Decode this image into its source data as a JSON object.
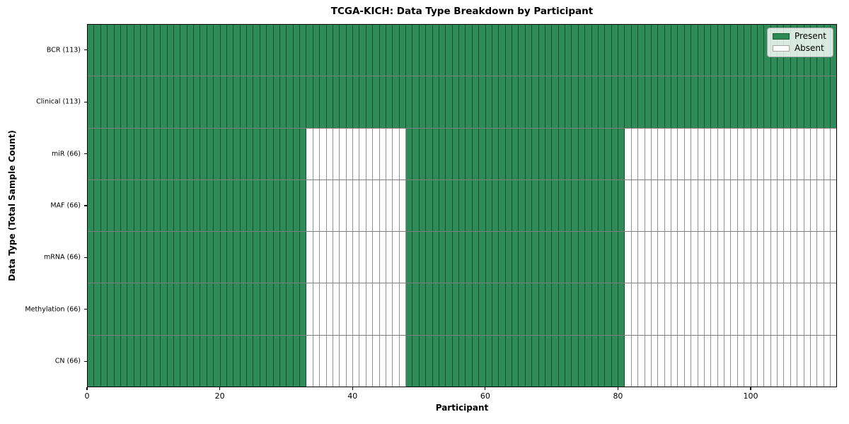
{
  "chart_data": {
    "type": "heatmap",
    "title": "TCGA-KICH: Data Type Breakdown by Participant",
    "xlabel": "Participant",
    "ylabel": "Data Type (Total Sample Count)",
    "xlim": [
      0,
      113
    ],
    "n_participants": 113,
    "x_ticks": [
      0,
      20,
      40,
      60,
      80,
      100
    ],
    "grid": "cell-outlines",
    "legend_position": "upper right",
    "rows": [
      {
        "label": "BCR (113)",
        "total_samples": 113,
        "present_ranges": [
          [
            0,
            113
          ]
        ]
      },
      {
        "label": "Clinical (113)",
        "total_samples": 113,
        "present_ranges": [
          [
            0,
            113
          ]
        ]
      },
      {
        "label": "miR (66)",
        "total_samples": 66,
        "present_ranges": [
          [
            0,
            33
          ],
          [
            48,
            81
          ]
        ]
      },
      {
        "label": "MAF (66)",
        "total_samples": 66,
        "present_ranges": [
          [
            0,
            33
          ],
          [
            48,
            81
          ]
        ]
      },
      {
        "label": "mRNA (66)",
        "total_samples": 66,
        "present_ranges": [
          [
            0,
            33
          ],
          [
            48,
            81
          ]
        ]
      },
      {
        "label": "Methylation (66)",
        "total_samples": 66,
        "present_ranges": [
          [
            0,
            33
          ],
          [
            48,
            81
          ]
        ]
      },
      {
        "label": "CN (66)",
        "total_samples": 66,
        "present_ranges": [
          [
            0,
            33
          ],
          [
            48,
            81
          ]
        ]
      }
    ],
    "legend": [
      {
        "label": "Present",
        "color": "#2e8b57"
      },
      {
        "label": "Absent",
        "color": "#ffffff"
      }
    ],
    "colors": {
      "present": "#2e8b57",
      "absent": "#ffffff",
      "cell_edge": "rgba(0,0,0,0.42)",
      "row_separator": "rgba(0,0,0,0.5)",
      "frame": "#000000"
    }
  }
}
